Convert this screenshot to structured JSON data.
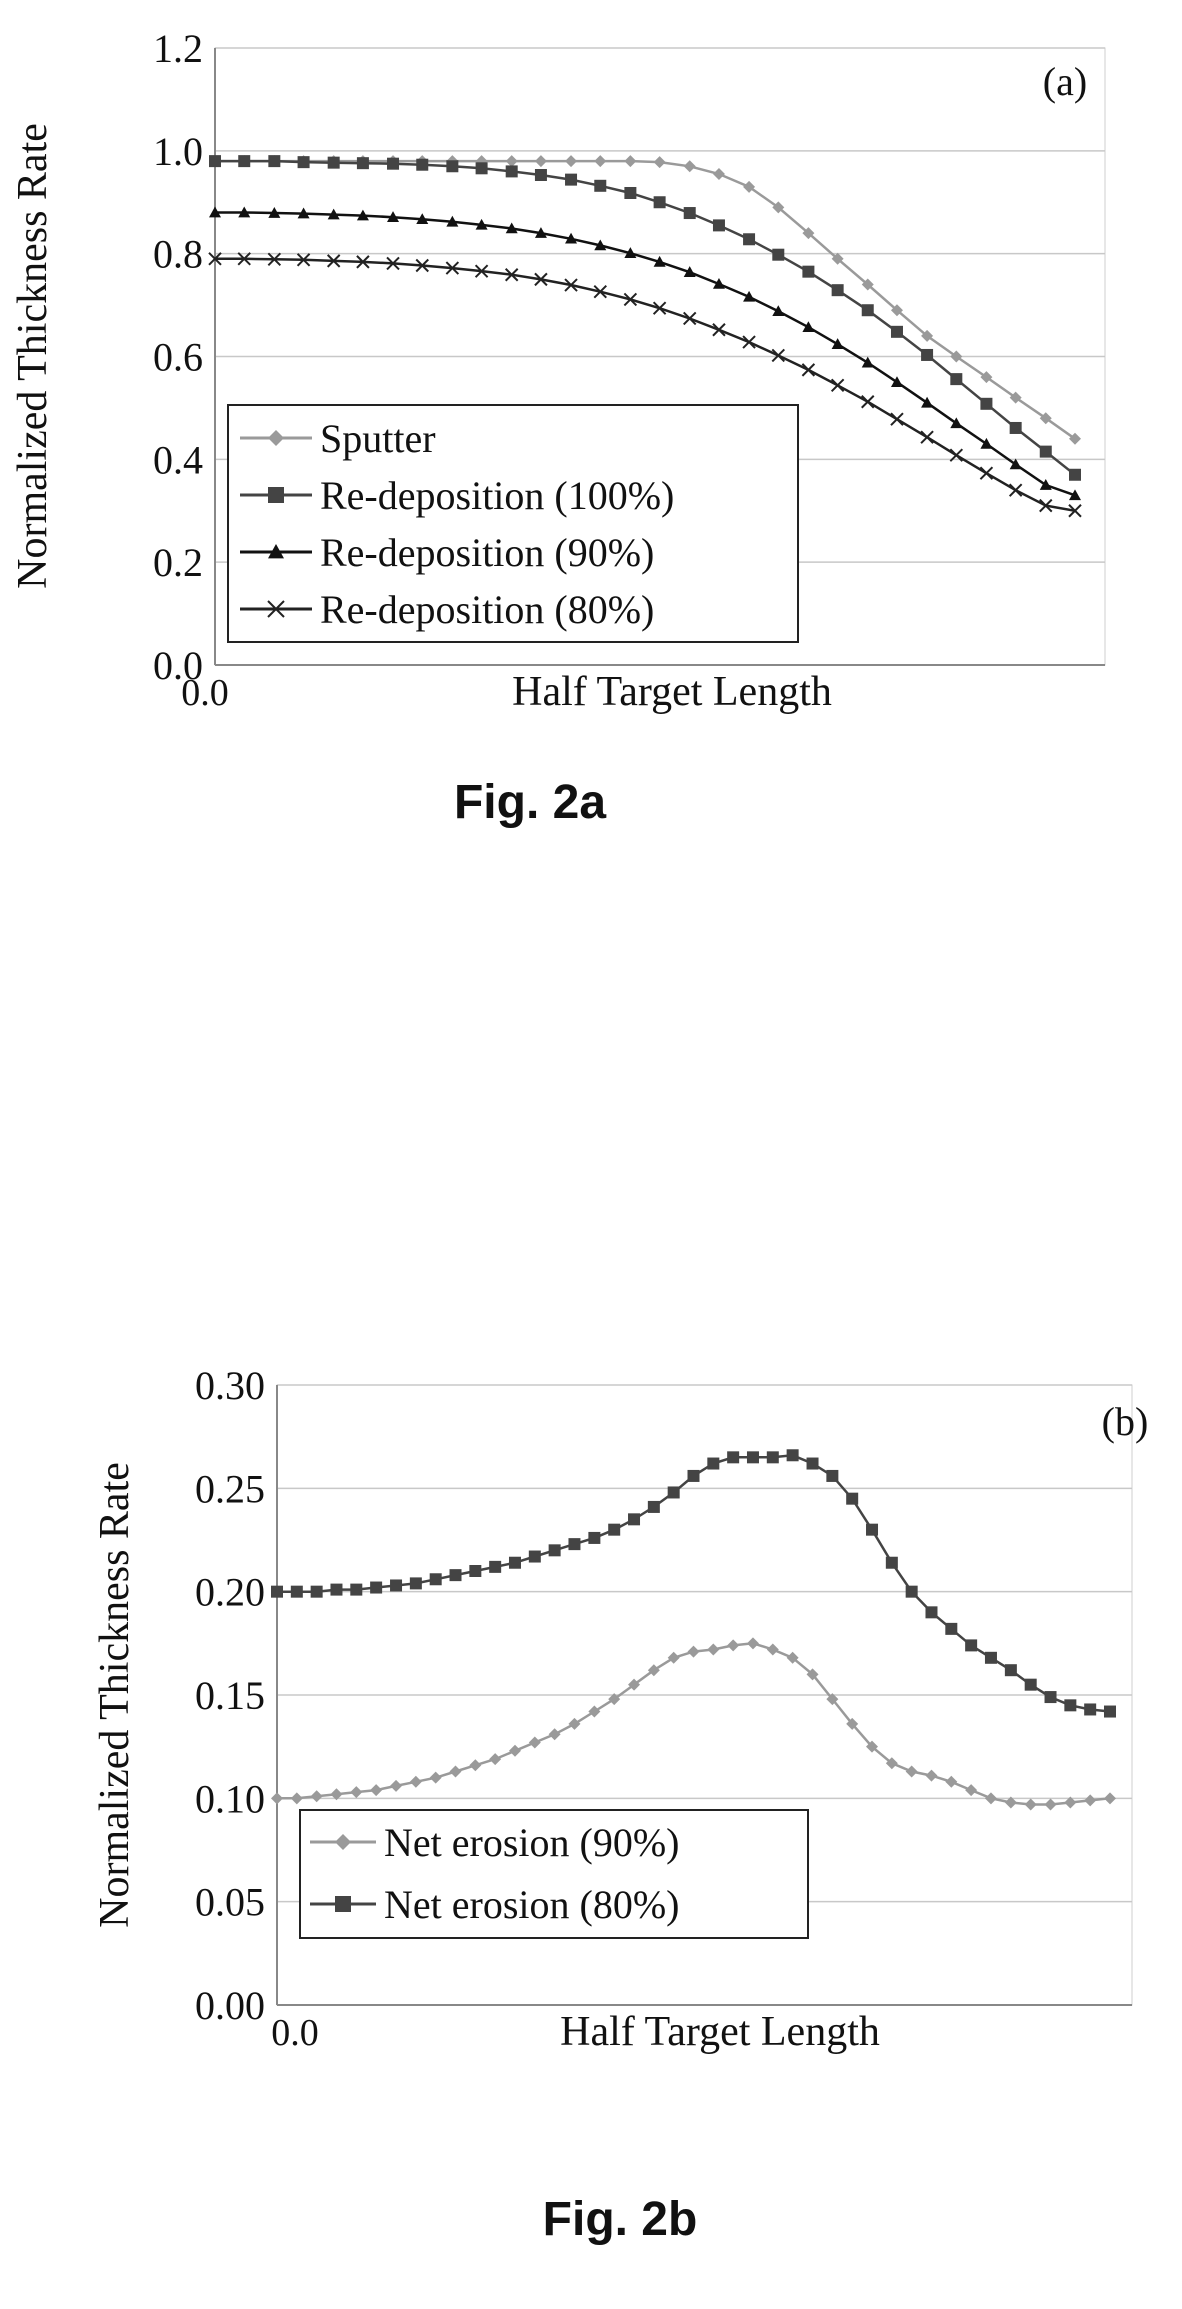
{
  "chart_data": [
    {
      "type": "line",
      "panel_label": "(a)",
      "caption": "Fig. 2a",
      "xlabel": "Half Target Length",
      "ylabel": "Normalized Thickness Rate",
      "x_tick_labels": [
        "0.0"
      ],
      "y_tick_labels": [
        "0.0",
        "0.2",
        "0.4",
        "0.6",
        "0.8",
        "1.0",
        "1.2"
      ],
      "ylim": [
        0,
        1.2
      ],
      "xlim": [
        0,
        1
      ],
      "grid": "horizontal",
      "legend_position": "bottom-left",
      "x": [
        0,
        0.034,
        0.069,
        0.103,
        0.138,
        0.172,
        0.207,
        0.241,
        0.276,
        0.31,
        0.345,
        0.379,
        0.414,
        0.448,
        0.483,
        0.517,
        0.552,
        0.586,
        0.621,
        0.655,
        0.69,
        0.724,
        0.759,
        0.793,
        0.828,
        0.862,
        0.897,
        0.931,
        0.966,
        1.0
      ],
      "series": [
        {
          "name": "Sputter",
          "color": "#9a9a9a",
          "marker": "diamond",
          "values": [
            0.98,
            0.98,
            0.98,
            0.98,
            0.98,
            0.98,
            0.98,
            0.98,
            0.98,
            0.98,
            0.98,
            0.98,
            0.98,
            0.98,
            0.98,
            0.978,
            0.97,
            0.955,
            0.93,
            0.89,
            0.84,
            0.79,
            0.74,
            0.69,
            0.64,
            0.6,
            0.56,
            0.52,
            0.48,
            0.44
          ]
        },
        {
          "name": "Re-deposition (100%)",
          "color": "#444444",
          "marker": "square",
          "values": [
            0.98,
            0.98,
            0.98,
            0.978,
            0.977,
            0.976,
            0.975,
            0.973,
            0.97,
            0.966,
            0.96,
            0.953,
            0.944,
            0.932,
            0.918,
            0.9,
            0.879,
            0.855,
            0.828,
            0.798,
            0.765,
            0.729,
            0.69,
            0.648,
            0.603,
            0.556,
            0.508,
            0.461,
            0.415,
            0.37
          ]
        },
        {
          "name": "Re-deposition (90%)",
          "color": "#111111",
          "marker": "triangle",
          "values": [
            0.88,
            0.88,
            0.879,
            0.878,
            0.876,
            0.874,
            0.871,
            0.867,
            0.862,
            0.856,
            0.849,
            0.84,
            0.829,
            0.816,
            0.801,
            0.784,
            0.764,
            0.741,
            0.716,
            0.688,
            0.657,
            0.624,
            0.588,
            0.55,
            0.51,
            0.47,
            0.43,
            0.39,
            0.35,
            0.33
          ]
        },
        {
          "name": "Re-deposition (80%)",
          "color": "#222222",
          "marker": "x",
          "values": [
            0.79,
            0.79,
            0.789,
            0.788,
            0.786,
            0.784,
            0.781,
            0.777,
            0.772,
            0.766,
            0.759,
            0.75,
            0.739,
            0.726,
            0.711,
            0.694,
            0.674,
            0.652,
            0.628,
            0.602,
            0.574,
            0.544,
            0.512,
            0.478,
            0.443,
            0.408,
            0.373,
            0.34,
            0.31,
            0.3
          ]
        }
      ]
    },
    {
      "type": "line",
      "panel_label": "(b)",
      "caption": "Fig. 2b",
      "xlabel": "Half Target Length",
      "ylabel": "Normalized Thickness Rate",
      "x_tick_labels": [
        "0.0"
      ],
      "y_tick_labels": [
        "0.00",
        "0.05",
        "0.10",
        "0.15",
        "0.20",
        "0.25",
        "0.30"
      ],
      "ylim": [
        0,
        0.3
      ],
      "xlim": [
        0,
        1
      ],
      "grid": "horizontal",
      "legend_position": "bottom-left",
      "x": [
        0,
        0.0238,
        0.0476,
        0.0714,
        0.0952,
        0.119,
        0.1429,
        0.1667,
        0.1905,
        0.2143,
        0.2381,
        0.2619,
        0.2857,
        0.3095,
        0.3333,
        0.3571,
        0.381,
        0.4048,
        0.4286,
        0.4524,
        0.4762,
        0.5,
        0.5238,
        0.5476,
        0.5714,
        0.5952,
        0.619,
        0.6429,
        0.6667,
        0.6905,
        0.7143,
        0.7381,
        0.7619,
        0.7857,
        0.8095,
        0.8333,
        0.8571,
        0.881,
        0.9048,
        0.9286,
        0.9524,
        0.9762,
        1.0
      ],
      "series": [
        {
          "name": "Net erosion (90%)",
          "color": "#9a9a9a",
          "marker": "diamond",
          "values": [
            0.1,
            0.1,
            0.101,
            0.102,
            0.103,
            0.104,
            0.106,
            0.108,
            0.11,
            0.113,
            0.116,
            0.119,
            0.123,
            0.127,
            0.131,
            0.136,
            0.142,
            0.148,
            0.155,
            0.162,
            0.168,
            0.171,
            0.172,
            0.174,
            0.175,
            0.172,
            0.168,
            0.16,
            0.148,
            0.136,
            0.125,
            0.117,
            0.113,
            0.111,
            0.108,
            0.104,
            0.1,
            0.098,
            0.097,
            0.097,
            0.098,
            0.099,
            0.1
          ]
        },
        {
          "name": "Net erosion (80%)",
          "color": "#444444",
          "marker": "square",
          "values": [
            0.2,
            0.2,
            0.2,
            0.201,
            0.201,
            0.202,
            0.203,
            0.204,
            0.206,
            0.208,
            0.21,
            0.212,
            0.214,
            0.217,
            0.22,
            0.223,
            0.226,
            0.23,
            0.235,
            0.241,
            0.248,
            0.256,
            0.262,
            0.265,
            0.265,
            0.265,
            0.266,
            0.262,
            0.256,
            0.245,
            0.23,
            0.214,
            0.2,
            0.19,
            0.182,
            0.174,
            0.168,
            0.162,
            0.155,
            0.149,
            0.145,
            0.143,
            0.142
          ]
        }
      ]
    }
  ]
}
